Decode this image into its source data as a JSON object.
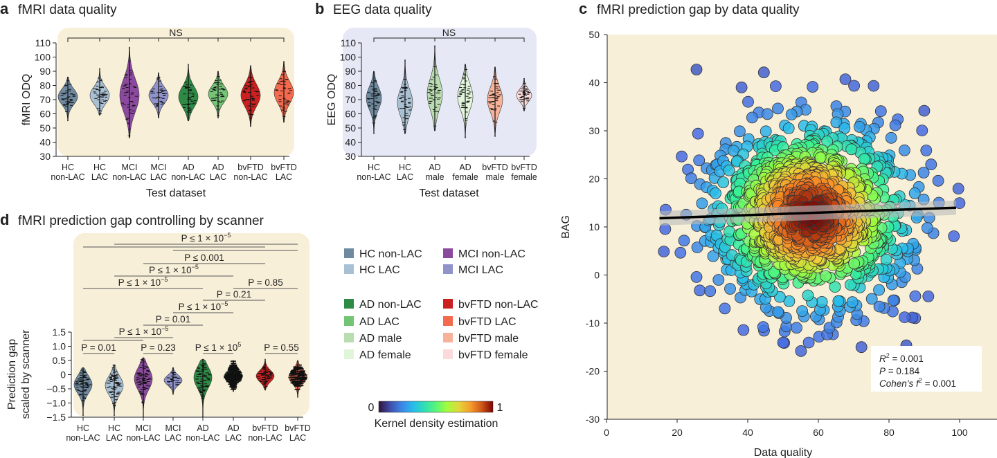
{
  "panels": {
    "a": {
      "letter": "a",
      "title": "fMRI data quality"
    },
    "b": {
      "letter": "b",
      "title": "EEG data quality"
    },
    "c": {
      "letter": "c",
      "title": "fMRI prediction gap by data quality"
    },
    "d": {
      "letter": "d",
      "title": "fMRI prediction gap controlling by scanner"
    }
  },
  "colors": {
    "HC non-LAC": "#6f8aa0",
    "HC LAC": "#a9c0d3",
    "MCI non-LAC": "#8b4a9e",
    "MCI LAC": "#8f93c9",
    "AD non-LAC": "#2e8b45",
    "AD LAC": "#74c476",
    "AD male": "#b9ddb0",
    "AD female": "#e0f5da",
    "bvFTD non-LAC": "#cc1f1f",
    "bvFTD LAC": "#f46a4e",
    "bvFTD male": "#f7b39a",
    "bvFTD female": "#fbdada",
    "panel_bg_warm": "#f8efd9",
    "panel_bg_cool": "#e6e9f5"
  },
  "legend": {
    "items": [
      {
        "label": "HC non-LAC"
      },
      {
        "label": "MCI non-LAC"
      },
      {
        "label": "HC LAC"
      },
      {
        "label": "MCI LAC"
      },
      {
        "label": "AD non-LAC"
      },
      {
        "label": "bvFTD non-LAC"
      },
      {
        "label": "AD LAC"
      },
      {
        "label": "bvFTD LAC"
      },
      {
        "label": "AD male"
      },
      {
        "label": "bvFTD male"
      },
      {
        "label": "AD female"
      },
      {
        "label": "bvFTD female"
      }
    ],
    "colorbar": {
      "min_label": "0",
      "max_label": "1",
      "caption": "Kernel density estimation",
      "colormap": "turbo"
    }
  },
  "chart_data": [
    {
      "id": "a",
      "type": "violin",
      "title": "fMRI data quality",
      "xlabel": "Test dataset",
      "ylabel": "fMRI ODQ",
      "ylim": [
        30,
        110
      ],
      "yticks": [
        "30",
        "40",
        "50",
        "60",
        "70",
        "80",
        "90",
        "100",
        "110"
      ],
      "significance": "NS",
      "groups": [
        {
          "name": "HC non-LAC",
          "line1": "HC",
          "line2": "non-LAC",
          "min": 55,
          "max": 86,
          "median": 72
        },
        {
          "name": "HC LAC",
          "line1": "HC",
          "line2": "LAC",
          "min": 59,
          "max": 92,
          "median": 73
        },
        {
          "name": "MCI non-LAC",
          "line1": "MCI",
          "line2": "non-LAC",
          "min": 43,
          "max": 107,
          "median": 73
        },
        {
          "name": "MCI LAC",
          "line1": "MCI",
          "line2": "LAC",
          "min": 57,
          "max": 89,
          "median": 73
        },
        {
          "name": "AD non-LAC",
          "line1": "AD",
          "line2": "non-LAC",
          "min": 55,
          "max": 95,
          "median": 72
        },
        {
          "name": "AD LAC",
          "line1": "AD",
          "line2": "LAC",
          "min": 57,
          "max": 90,
          "median": 74
        },
        {
          "name": "bvFTD non-LAC",
          "line1": "bvFTD",
          "line2": "non-LAC",
          "min": 51,
          "max": 94,
          "median": 73
        },
        {
          "name": "bvFTD LAC",
          "line1": "bvFTD",
          "line2": "LAC",
          "min": 54,
          "max": 97,
          "median": 75
        }
      ]
    },
    {
      "id": "b",
      "type": "violin",
      "title": "EEG data quality",
      "xlabel": "Test dataset",
      "ylabel": "EEG ODQ",
      "ylim": [
        30,
        110
      ],
      "yticks": [
        "30",
        "40",
        "50",
        "60",
        "70",
        "80",
        "90",
        "100",
        "110"
      ],
      "significance": "NS",
      "groups": [
        {
          "name": "HC non-LAC",
          "line1": "HC",
          "line2": "non-LAC",
          "min": 46,
          "max": 90,
          "median": 71
        },
        {
          "name": "HC LAC",
          "line1": "HC",
          "line2": "LAC",
          "min": 46,
          "max": 98,
          "median": 68
        },
        {
          "name": "AD male",
          "line1": "AD",
          "line2": "male",
          "min": 48,
          "max": 108,
          "median": 74
        },
        {
          "name": "AD female",
          "line1": "AD",
          "line2": "female",
          "min": 43,
          "max": 95,
          "median": 72
        },
        {
          "name": "bvFTD male",
          "line1": "bvFTD",
          "line2": "male",
          "min": 44,
          "max": 93,
          "median": 70
        },
        {
          "name": "bvFTD female",
          "line1": "bvFTD",
          "line2": "female",
          "min": 62,
          "max": 85,
          "median": 73
        }
      ]
    },
    {
      "id": "c",
      "type": "scatter",
      "title": "fMRI prediction gap by data quality",
      "xlabel": "Data quality",
      "ylabel": "BAG",
      "xlim": [
        0,
        110
      ],
      "ylim": [
        -30,
        50
      ],
      "xticks": [
        "0",
        "20",
        "40",
        "60",
        "80",
        "100"
      ],
      "yticks": [
        "-30",
        "-20",
        "-10",
        "0",
        "10",
        "20",
        "30",
        "40",
        "50"
      ],
      "point_color": "kernel density estimation",
      "distribution": {
        "x_mean": 58,
        "x_sd": 15,
        "y_mean": 12.5,
        "y_sd": 10,
        "x_range": [
          15,
          100
        ],
        "y_range": [
          -16,
          43
        ]
      },
      "regression": {
        "x": [
          15,
          99
        ],
        "y": [
          11.8,
          14.0
        ]
      },
      "stats": {
        "r2_label": "R",
        "r2_value": " = 0.001",
        "p_label": "P",
        "p_value": " = 0.184",
        "f2_label": "Cohen’s f",
        "f2_value": " = 0.001"
      }
    },
    {
      "id": "d",
      "type": "violin",
      "title": "fMRI prediction gap controlling by scanner",
      "ylabel_line1": "Prediction gap",
      "ylabel_line2": "scaled by scanner",
      "ylim": [
        -1.5,
        1.5
      ],
      "yticks": [
        "−1.5",
        "−1.0",
        "−0.5",
        "0",
        "0.5",
        "1.0",
        "1.5"
      ],
      "groups": [
        {
          "name": "HC non-LAC",
          "line1": "HC",
          "line2": "non-LAC",
          "min": -1.45,
          "max": 0.25,
          "median": -0.35
        },
        {
          "name": "HC LAC",
          "line1": "HC",
          "line2": "LAC",
          "min": -1.45,
          "max": 0.35,
          "median": -0.38
        },
        {
          "name": "MCI non-LAC",
          "line1": "MCI",
          "line2": "non-LAC",
          "min": -1.5,
          "max": 0.6,
          "median": -0.15
        },
        {
          "name": "MCI LAC",
          "line1": "MCI",
          "line2": "LAC",
          "min": -0.7,
          "max": 0.25,
          "median": -0.2
        },
        {
          "name": "AD non-LAC",
          "line1": "AD",
          "line2": "non-LAC",
          "min": -1.5,
          "max": 0.55,
          "median": -0.1
        },
        {
          "name": "AD LAC",
          "line1": "AD",
          "line2": "LAC",
          "min": -0.6,
          "max": 0.5,
          "median": -0.05
        },
        {
          "name": "bvFTD non-LAC",
          "line1": "bvFTD",
          "line2": "non-LAC",
          "min": -0.55,
          "max": 0.55,
          "median": -0.05
        },
        {
          "name": "bvFTD LAC",
          "line1": "bvFTD",
          "line2": "LAC",
          "min": -0.8,
          "max": 0.5,
          "median": -0.08
        }
      ],
      "comparisons": [
        {
          "from": 1,
          "to": 7,
          "label": "P ≤ 1 × 10",
          "exp": "−5"
        },
        {
          "from": 0,
          "to": 6,
          "label": "",
          "exp": ""
        },
        {
          "from": 3,
          "to": 7,
          "label": "",
          "exp": ""
        },
        {
          "from": 2,
          "to": 6,
          "label": "P ≤ 0.001",
          "exp": ""
        },
        {
          "from": 1,
          "to": 5,
          "label": "P ≤ 1 × 10",
          "exp": "−5"
        },
        {
          "from": 0,
          "to": 4,
          "label": "P ≤ 1 × 10",
          "exp": "−5"
        },
        {
          "from": 5,
          "to": 7,
          "label": "P = 0.85",
          "exp": ""
        },
        {
          "from": 4,
          "to": 6,
          "label": "P = 0.21",
          "exp": ""
        },
        {
          "from": 3,
          "to": 5,
          "label": "P ≤ 1 × 10",
          "exp": "−5"
        },
        {
          "from": 2,
          "to": 4,
          "label": "P = 0.01",
          "exp": ""
        },
        {
          "from": 1,
          "to": 3,
          "label": "P ≤ 1 × 10",
          "exp": "−5"
        },
        {
          "from": 0,
          "to": 2,
          "label": "",
          "exp": ""
        },
        {
          "from": 0,
          "to": 1,
          "label": "P = 0.01",
          "exp": ""
        },
        {
          "from": 2,
          "to": 3,
          "label": "P = 0.23",
          "exp": ""
        },
        {
          "from": 4,
          "to": 5,
          "label": "P ≤ 1 × 10",
          "exp": "5"
        },
        {
          "from": 6,
          "to": 7,
          "label": "P = 0.55",
          "exp": ""
        }
      ]
    }
  ]
}
